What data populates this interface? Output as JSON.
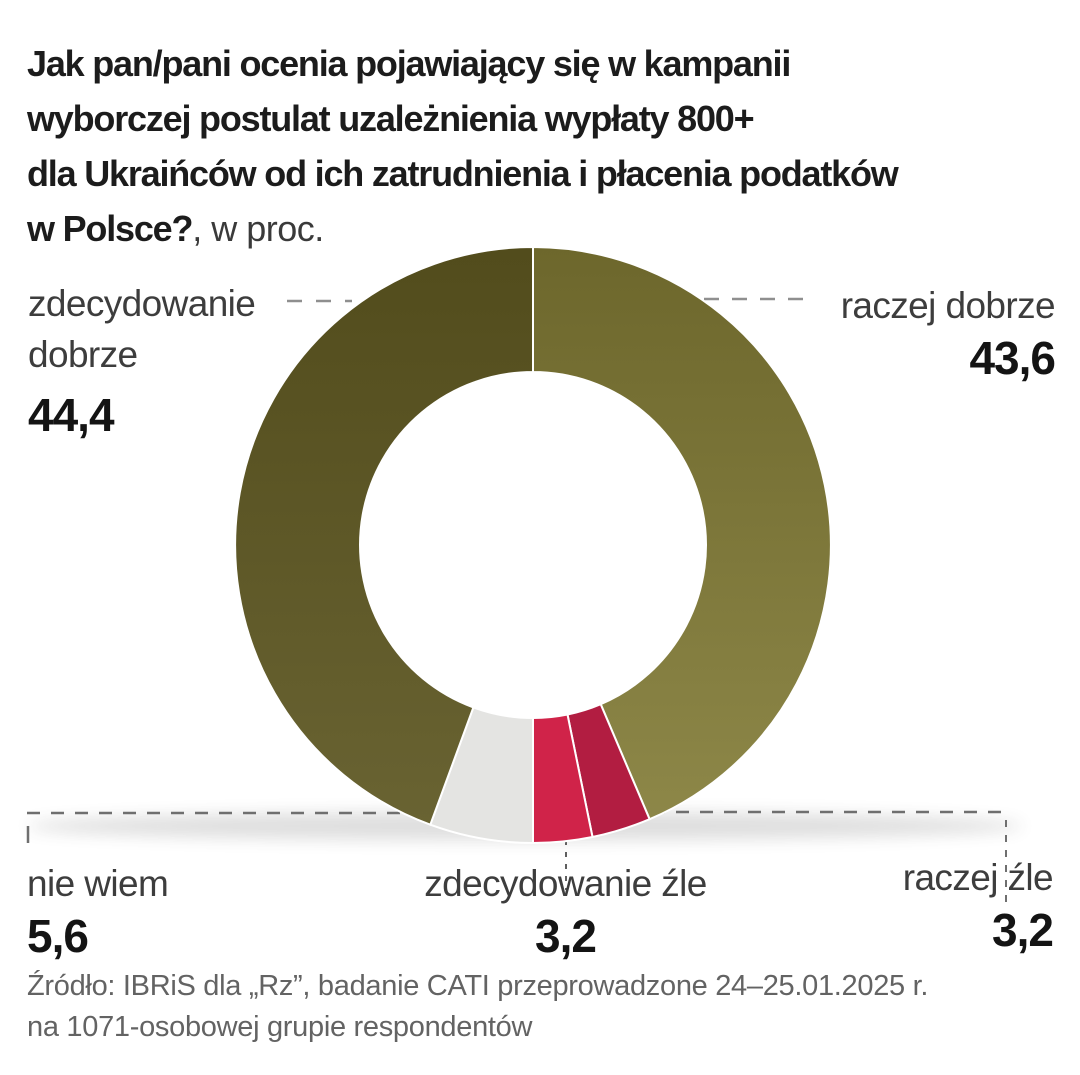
{
  "title": {
    "line1": "Jak pan/pani ocenia pojawiający się w kampanii",
    "line2": "wyborczej postulat uzależnienia wypłaty 800+",
    "line3": "dla Ukraińców od ich zatrudnienia i płacenia podatków",
    "line4_bold": "w Polsce?",
    "line4_suffix": ", w proc."
  },
  "chart_data": {
    "type": "pie",
    "subtype": "donut",
    "units": "percent",
    "question": "Jak pan/pani ocenia pojawiający się w kampanii wyborczej postulat uzależnienia wypłaty 800+ dla Ukraińców od ich zatrudnienia i płacenia podatków w Polsce?",
    "direction": "clockwise",
    "start_angle_deg": 0,
    "inner_radius_ratio": 0.58,
    "slices": [
      {
        "label": "raczej dobrze",
        "value": 43.6,
        "display_value": "43,6",
        "color": "#6d672c",
        "color2": "#8d8748"
      },
      {
        "label": "raczej źle",
        "value": 3.2,
        "display_value": "3,2",
        "color": "#b21d41"
      },
      {
        "label": "zdecydowanie źle",
        "value": 3.2,
        "display_value": "3,2",
        "color": "#d02349"
      },
      {
        "label": "nie wiem",
        "value": 5.6,
        "display_value": "5,6",
        "color": "#e4e4e2"
      },
      {
        "label": "zdecydowanie dobrze",
        "value": 44.4,
        "display_value": "44,4",
        "color": "#524c1c",
        "color2": "#696332"
      }
    ]
  },
  "source": {
    "line1": "Źródło: IBRiS dla „Rz”, badanie CATI przeprowadzone 24–25.01.2025 r.",
    "line2": "na 1071-osobowej grupie respondentów"
  }
}
